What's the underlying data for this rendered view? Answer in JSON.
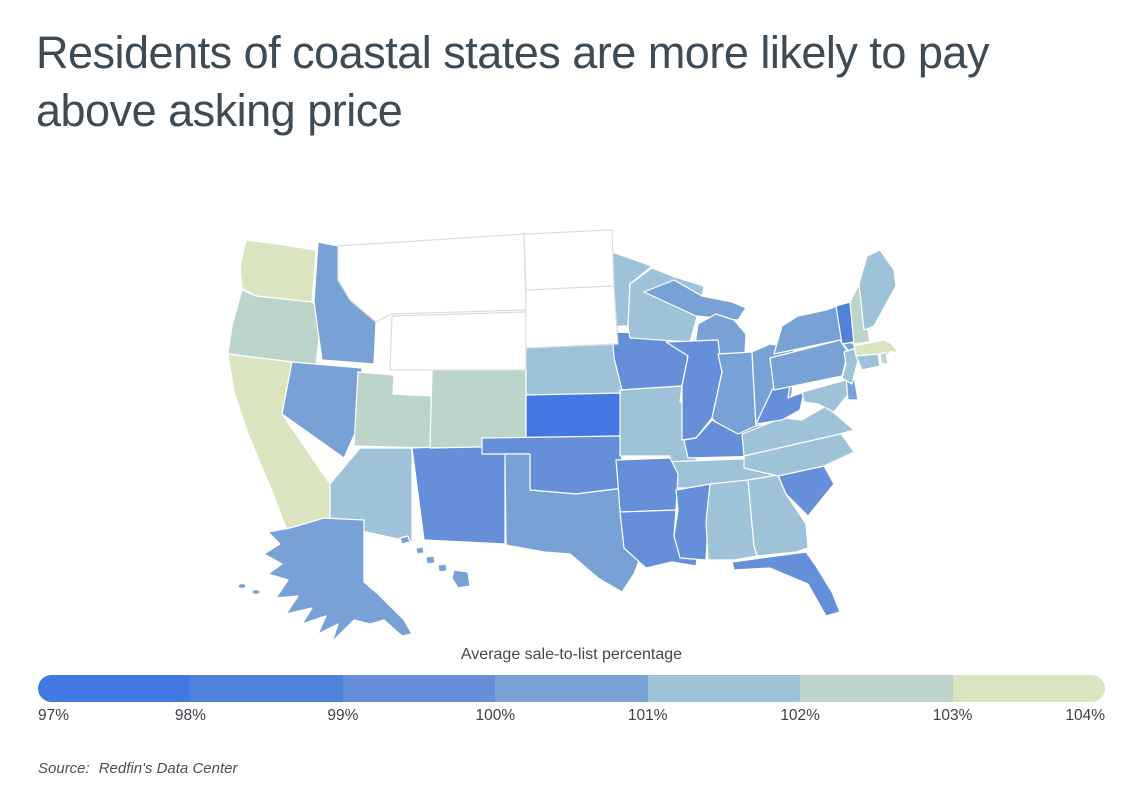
{
  "title": "Residents of coastal states are more likely to pay above asking price",
  "legend": {
    "title": "Average sale-to-list percentage",
    "tick_labels": [
      "97%",
      "98%",
      "99%",
      "100%",
      "101%",
      "102%",
      "103%",
      "104%"
    ],
    "band_colors": [
      "#4377e2",
      "#5082dc",
      "#6590d9",
      "#78a2d5",
      "#9ec2d7",
      "#bdd4ca",
      "#dae5c0"
    ],
    "no_data_color": "#ffffff"
  },
  "source": {
    "label": "Source:",
    "text": "Redfin's Data Center"
  },
  "colors": {
    "title_text": "#3e4a54",
    "tick_text": "#3a4249",
    "source_text": "#4f4f4f",
    "state_border": "#ffffff",
    "no_data_border": "#d9dee2"
  },
  "chart_data": {
    "type": "choropleth",
    "region": "United States by state",
    "metric": "Average sale-to-list percentage",
    "unit": "%",
    "range": [
      97,
      104
    ],
    "legend_bands": [
      "97-98",
      "98-99",
      "99-100",
      "100-101",
      "101-102",
      "102-103",
      "103-104"
    ],
    "no_data_states": [
      "MT",
      "WY",
      "ND",
      "SD"
    ],
    "states": [
      {
        "abbr": "AL",
        "name": "Alabama",
        "value": 101.1
      },
      {
        "abbr": "AK",
        "name": "Alaska",
        "value": 100.2
      },
      {
        "abbr": "AZ",
        "name": "Arizona",
        "value": 101.4
      },
      {
        "abbr": "AR",
        "name": "Arkansas",
        "value": 99.8
      },
      {
        "abbr": "CA",
        "name": "California",
        "value": 103.3
      },
      {
        "abbr": "CO",
        "name": "Colorado",
        "value": 102.4
      },
      {
        "abbr": "CT",
        "name": "Connecticut",
        "value": 101.4
      },
      {
        "abbr": "DE",
        "name": "Delaware",
        "value": 100.3
      },
      {
        "abbr": "FL",
        "name": "Florida",
        "value": 99.2
      },
      {
        "abbr": "GA",
        "name": "Georgia",
        "value": 101.2
      },
      {
        "abbr": "HI",
        "name": "Hawaii",
        "value": 100.2
      },
      {
        "abbr": "ID",
        "name": "Idaho",
        "value": 100.4
      },
      {
        "abbr": "IL",
        "name": "Illinois",
        "value": 99.4
      },
      {
        "abbr": "IN",
        "name": "Indiana",
        "value": 100.1
      },
      {
        "abbr": "IA",
        "name": "Iowa",
        "value": 99.6
      },
      {
        "abbr": "KS",
        "name": "Kansas",
        "value": 97.6
      },
      {
        "abbr": "KY",
        "name": "Kentucky",
        "value": 99.8
      },
      {
        "abbr": "LA",
        "name": "Louisiana",
        "value": 99.1
      },
      {
        "abbr": "ME",
        "name": "Maine",
        "value": 101.6
      },
      {
        "abbr": "MD",
        "name": "Maryland",
        "value": 101.0
      },
      {
        "abbr": "MA",
        "name": "Massachusetts",
        "value": 103.3
      },
      {
        "abbr": "MI",
        "name": "Michigan",
        "value": 100.0
      },
      {
        "abbr": "MN",
        "name": "Minnesota",
        "value": 101.4
      },
      {
        "abbr": "MS",
        "name": "Mississippi",
        "value": 99.1
      },
      {
        "abbr": "MO",
        "name": "Missouri",
        "value": 101.8
      },
      {
        "abbr": "MT",
        "name": "Montana",
        "value": null
      },
      {
        "abbr": "NE",
        "name": "Nebraska",
        "value": 101.4
      },
      {
        "abbr": "NV",
        "name": "Nevada",
        "value": 100.4
      },
      {
        "abbr": "NH",
        "name": "New Hampshire",
        "value": 102.5
      },
      {
        "abbr": "NJ",
        "name": "New Jersey",
        "value": 101.2
      },
      {
        "abbr": "NM",
        "name": "New Mexico",
        "value": 99.9
      },
      {
        "abbr": "NY",
        "name": "New York",
        "value": 100.8
      },
      {
        "abbr": "NC",
        "name": "North Carolina",
        "value": 101.5
      },
      {
        "abbr": "ND",
        "name": "North Dakota",
        "value": null
      },
      {
        "abbr": "OH",
        "name": "Ohio",
        "value": 100.0
      },
      {
        "abbr": "OK",
        "name": "Oklahoma",
        "value": 99.8
      },
      {
        "abbr": "OR",
        "name": "Oregon",
        "value": 102.4
      },
      {
        "abbr": "PA",
        "name": "Pennsylvania",
        "value": 100.8
      },
      {
        "abbr": "RI",
        "name": "Rhode Island",
        "value": 102.5
      },
      {
        "abbr": "SC",
        "name": "South Carolina",
        "value": 99.9
      },
      {
        "abbr": "SD",
        "name": "South Dakota",
        "value": null
      },
      {
        "abbr": "TN",
        "name": "Tennessee",
        "value": 101.3
      },
      {
        "abbr": "TX",
        "name": "Texas",
        "value": 100.6
      },
      {
        "abbr": "UT",
        "name": "Utah",
        "value": 102.3
      },
      {
        "abbr": "VT",
        "name": "Vermont",
        "value": 98.7
      },
      {
        "abbr": "VA",
        "name": "Virginia",
        "value": 101.4
      },
      {
        "abbr": "WA",
        "name": "Washington",
        "value": 103.2
      },
      {
        "abbr": "WV",
        "name": "West Virginia",
        "value": 99.5
      },
      {
        "abbr": "WI",
        "name": "Wisconsin",
        "value": 101.5
      },
      {
        "abbr": "WY",
        "name": "Wyoming",
        "value": null
      }
    ]
  }
}
